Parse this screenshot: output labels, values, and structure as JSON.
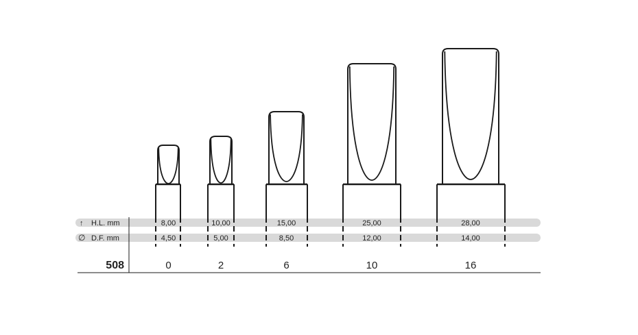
{
  "product_code": "508",
  "rows": [
    {
      "symbol": "↑",
      "label": "H.L. mm"
    },
    {
      "symbol": "∅",
      "label": "D.F. mm"
    }
  ],
  "sizes": [
    {
      "number": "0",
      "hl": "8,00",
      "df": "4,50"
    },
    {
      "number": "2",
      "hl": "10,00",
      "df": "5,00"
    },
    {
      "number": "6",
      "hl": "15,00",
      "df": "8,50"
    },
    {
      "number": "10",
      "hl": "25,00",
      "df": "12,00"
    },
    {
      "number": "16",
      "hl": "28,00",
      "df": "14,00"
    }
  ],
  "colors": {
    "band": "#d9d9d9",
    "line": "#1a1a1a",
    "text": "#222222",
    "background": "#ffffff"
  }
}
